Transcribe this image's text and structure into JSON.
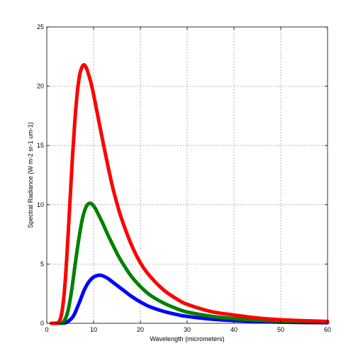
{
  "chart_data": {
    "type": "line",
    "title": "",
    "xlabel": "Wavelength (micrometers)",
    "ylabel": "Spectral Radiance (W m-2 sr-1 um-1)",
    "xlim": [
      0,
      60
    ],
    "ylim": [
      0,
      25
    ],
    "xticks": [
      0,
      10,
      20,
      30,
      40,
      50,
      60
    ],
    "yticks": [
      0,
      5,
      10,
      15,
      20,
      25
    ],
    "grid": true,
    "series": [
      {
        "color": "#ff0000",
        "x": [
          1,
          2,
          2.5,
          3,
          3.5,
          4,
          4.5,
          5,
          5.5,
          6,
          6.5,
          7,
          7.5,
          8,
          8.5,
          9,
          9.5,
          10,
          11,
          12,
          13,
          14,
          15,
          16,
          18,
          20,
          22,
          25,
          28,
          30,
          35,
          40,
          45,
          50,
          55,
          60
        ],
        "y": [
          0,
          0.01,
          0.08,
          0.5,
          1.7,
          3.9,
          7.1,
          10.6,
          14.1,
          17.1,
          19.4,
          20.9,
          21.6,
          21.8,
          21.5,
          20.9,
          20.2,
          19.3,
          17.3,
          15.3,
          13.4,
          11.6,
          10.1,
          8.8,
          6.7,
          5.1,
          4.0,
          2.8,
          2.0,
          1.6,
          1.0,
          0.7,
          0.45,
          0.3,
          0.22,
          0.16
        ]
      },
      {
        "color": "#008000",
        "x": [
          1,
          3,
          3.5,
          4,
          4.5,
          5,
          5.5,
          6,
          6.5,
          7,
          7.5,
          8,
          8.5,
          9,
          9.5,
          10,
          10.5,
          11,
          12,
          13,
          14,
          15,
          16,
          18,
          20,
          22,
          25,
          28,
          30,
          35,
          40,
          45,
          50,
          55,
          60
        ],
        "y": [
          0,
          0.02,
          0.1,
          0.4,
          1.0,
          2.0,
          3.3,
          4.8,
          6.2,
          7.5,
          8.6,
          9.4,
          9.9,
          10.1,
          10.1,
          9.9,
          9.6,
          9.2,
          8.4,
          7.5,
          6.7,
          5.9,
          5.2,
          4.0,
          3.1,
          2.4,
          1.7,
          1.2,
          0.95,
          0.6,
          0.4,
          0.27,
          0.19,
          0.14,
          0.1
        ]
      },
      {
        "color": "#0000ff",
        "x": [
          1,
          3,
          4,
          4.5,
          5,
          5.5,
          6,
          7,
          8,
          9,
          10,
          11,
          11.5,
          12,
          13,
          14,
          15,
          16,
          18,
          20,
          22,
          25,
          28,
          30,
          35,
          40,
          45,
          50,
          55,
          60
        ],
        "y": [
          0,
          0,
          0.05,
          0.15,
          0.3,
          0.5,
          0.85,
          1.8,
          2.8,
          3.5,
          3.9,
          4.05,
          4.05,
          4.0,
          3.8,
          3.5,
          3.2,
          2.9,
          2.3,
          1.8,
          1.4,
          1.0,
          0.72,
          0.58,
          0.36,
          0.23,
          0.15,
          0.1,
          0.07,
          0.05
        ]
      }
    ]
  }
}
